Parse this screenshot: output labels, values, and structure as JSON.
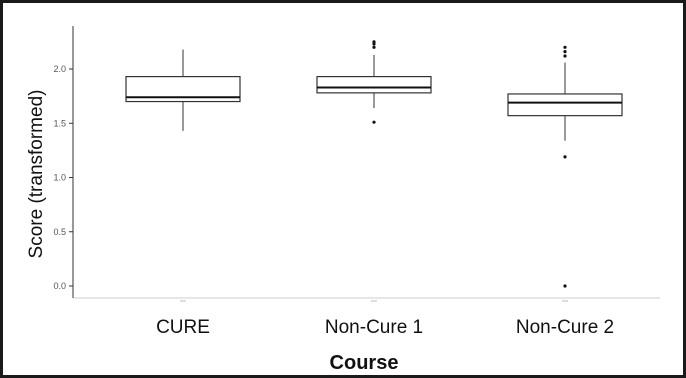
{
  "chart_data": {
    "type": "box",
    "title": "",
    "xlabel": "Course",
    "ylabel": "Score (transformed)",
    "ylim": [
      -0.05,
      2.4
    ],
    "yticks": [
      "0.0",
      "0.5",
      "1.0",
      "1.5",
      "2.0"
    ],
    "grid": false,
    "categories": [
      "CURE",
      "Non-Cure 1",
      "Non-Cure 2"
    ],
    "boxes": [
      {
        "category": "CURE",
        "whisker_low": 1.43,
        "q1": 1.7,
        "median": 1.74,
        "q3": 1.93,
        "whisker_high": 2.18,
        "outliers": []
      },
      {
        "category": "Non-Cure 1",
        "whisker_low": 1.64,
        "q1": 1.78,
        "median": 1.83,
        "q3": 1.93,
        "whisker_high": 2.13,
        "outliers": [
          1.51,
          2.2,
          2.23,
          2.25
        ]
      },
      {
        "category": "Non-Cure 2",
        "whisker_low": 1.34,
        "q1": 1.57,
        "median": 1.69,
        "q3": 1.77,
        "whisker_high": 2.06,
        "outliers": [
          1.19,
          2.12,
          2.16,
          2.2,
          0.0
        ]
      }
    ]
  }
}
